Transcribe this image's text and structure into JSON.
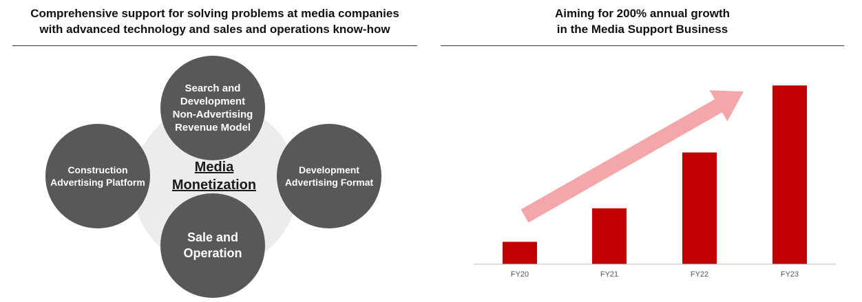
{
  "left_panel": {
    "title": "Comprehensive support for solving problems at media companies\nwith advanced technology and sales and operations know-how",
    "center_label": "Media\nMonetization",
    "nodes": {
      "top": "Search and\nDevelopment\nNon-Advertising\nRevenue Model",
      "left": "Construction\nAdvertising Platform",
      "right": "Development\nAdvertising Format",
      "bottom": "Sale and\nOperation"
    },
    "colors": {
      "node": "#595757",
      "background_circle": "#ececec"
    }
  },
  "right_panel": {
    "title": "Aiming for 200% annual growth\nin the Media Support Business"
  },
  "chart_data": {
    "type": "bar",
    "categories": [
      "FY20",
      "FY21",
      "FY22",
      "FY23"
    ],
    "values": [
      1,
      2.5,
      5,
      8
    ],
    "ylim": [
      0,
      8.5
    ],
    "grid": false,
    "colors": {
      "bar": "#c00000",
      "arrow": "#f4a6a9",
      "axis": "#bfbfbf"
    },
    "annotation": "trend-arrow"
  }
}
